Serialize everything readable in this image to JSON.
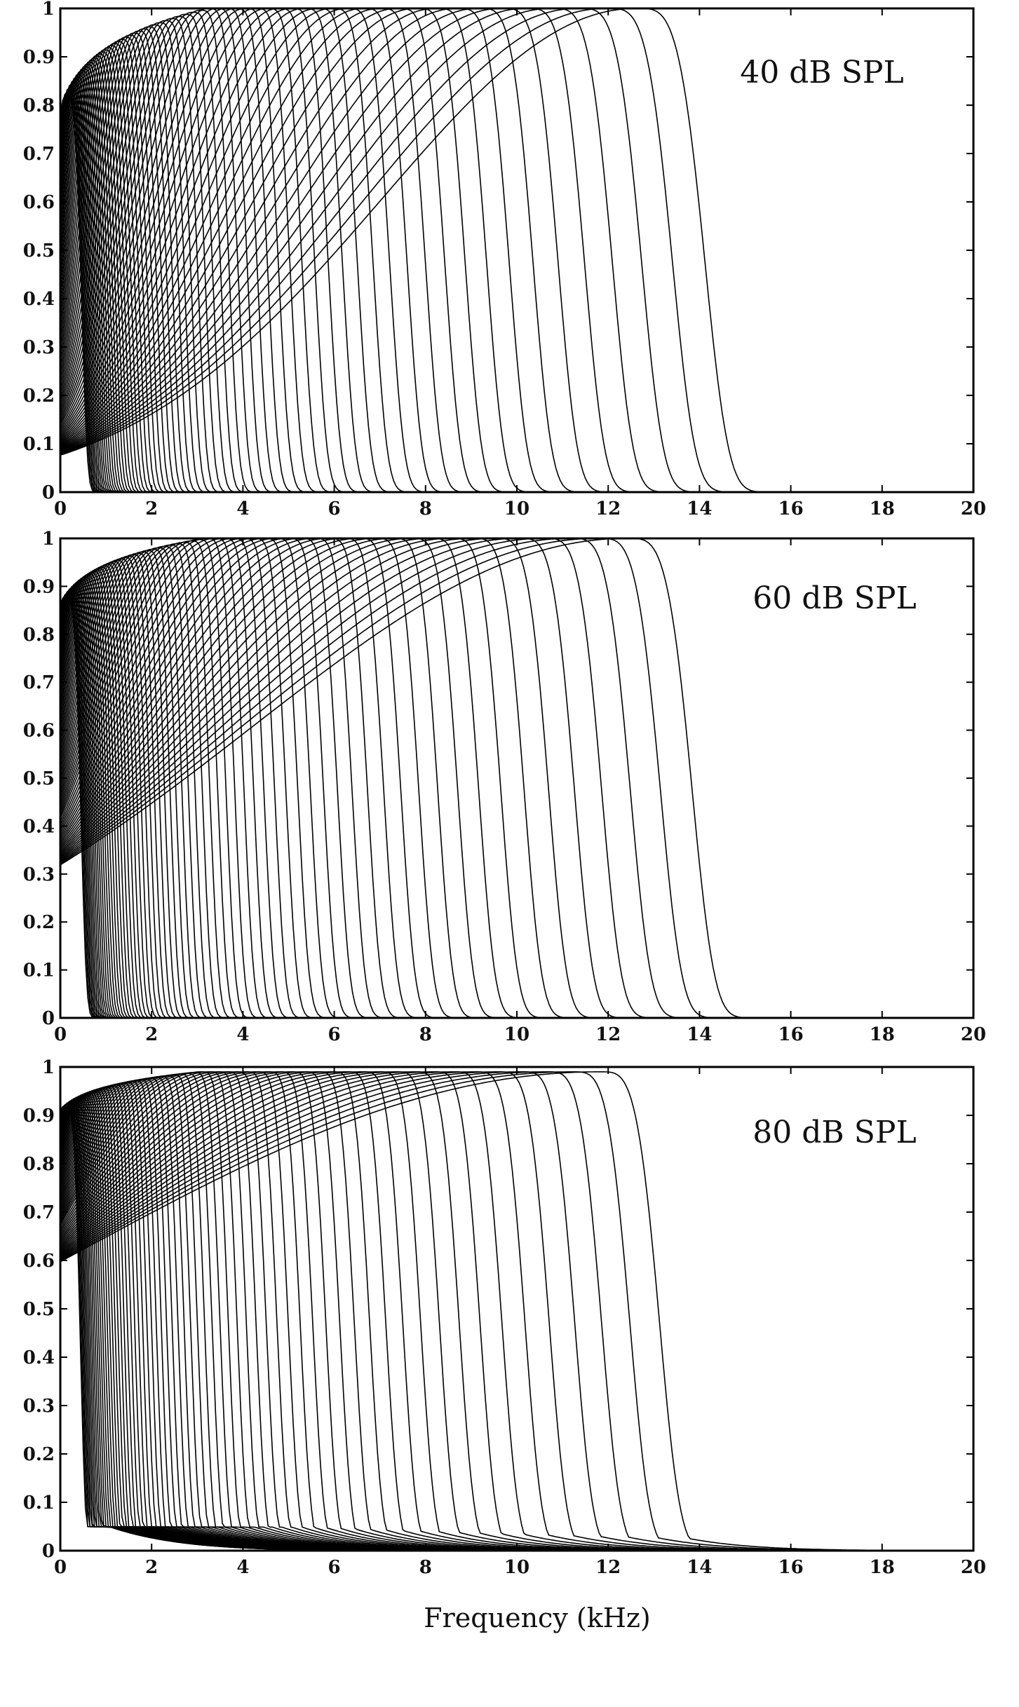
{
  "chart_data": [
    {
      "type": "line",
      "annotation": "40 dB SPL",
      "xlim": [
        0,
        20
      ],
      "ylim": [
        0,
        1
      ],
      "x_ticks": [
        "0",
        "2",
        "4",
        "6",
        "8",
        "10",
        "12",
        "14",
        "16",
        "18",
        "20"
      ],
      "y_ticks": [
        "0",
        "0.1",
        "0.2",
        "0.3",
        "0.4",
        "0.5",
        "0.6",
        "0.7",
        "0.8",
        "0.9",
        "1"
      ],
      "series_count": 68,
      "cf_range_khz": [
        0.1,
        12.6
      ],
      "curve_shape": {
        "peak_min": 0.82,
        "peak_max": 1.0,
        "lower_slope": 1.6,
        "upper_slope": 1.2,
        "floor": 0,
        "shelf": 0,
        "tail": 0
      }
    },
    {
      "type": "line",
      "annotation": "60 dB SPL",
      "xlim": [
        0,
        20
      ],
      "ylim": [
        0,
        1
      ],
      "x_ticks": [
        "0",
        "2",
        "4",
        "6",
        "8",
        "10",
        "12",
        "14",
        "16",
        "18",
        "20"
      ],
      "y_ticks": [
        "0",
        "0.1",
        "0.2",
        "0.3",
        "0.4",
        "0.5",
        "0.6",
        "0.7",
        "0.8",
        "0.9",
        "1"
      ],
      "series_count": 68,
      "cf_range_khz": [
        0.1,
        12.4
      ],
      "curve_shape": {
        "peak_min": 0.88,
        "peak_max": 1.0,
        "lower_slope": 2.4,
        "upper_slope": 1.15,
        "floor": 0.05,
        "shelf": 0.2,
        "tail": 0
      }
    },
    {
      "type": "line",
      "annotation": "80 dB SPL",
      "xlim": [
        0,
        20
      ],
      "ylim": [
        0,
        1
      ],
      "x_ticks": [
        "0",
        "2",
        "4",
        "6",
        "8",
        "10",
        "12",
        "14",
        "16",
        "18",
        "20"
      ],
      "y_ticks": [
        "0",
        "0.1",
        "0.2",
        "0.3",
        "0.4",
        "0.5",
        "0.6",
        "0.7",
        "0.8",
        "0.9",
        "1"
      ],
      "series_count": 68,
      "cf_range_khz": [
        0.1,
        11.8
      ],
      "curve_shape": {
        "peak_min": 0.92,
        "peak_max": 0.99,
        "lower_slope": 3.6,
        "upper_slope": 1.1,
        "floor": 0.08,
        "shelf": 0.02,
        "tail": 0.05
      }
    }
  ],
  "xlabel": "Frequency (kHz)"
}
